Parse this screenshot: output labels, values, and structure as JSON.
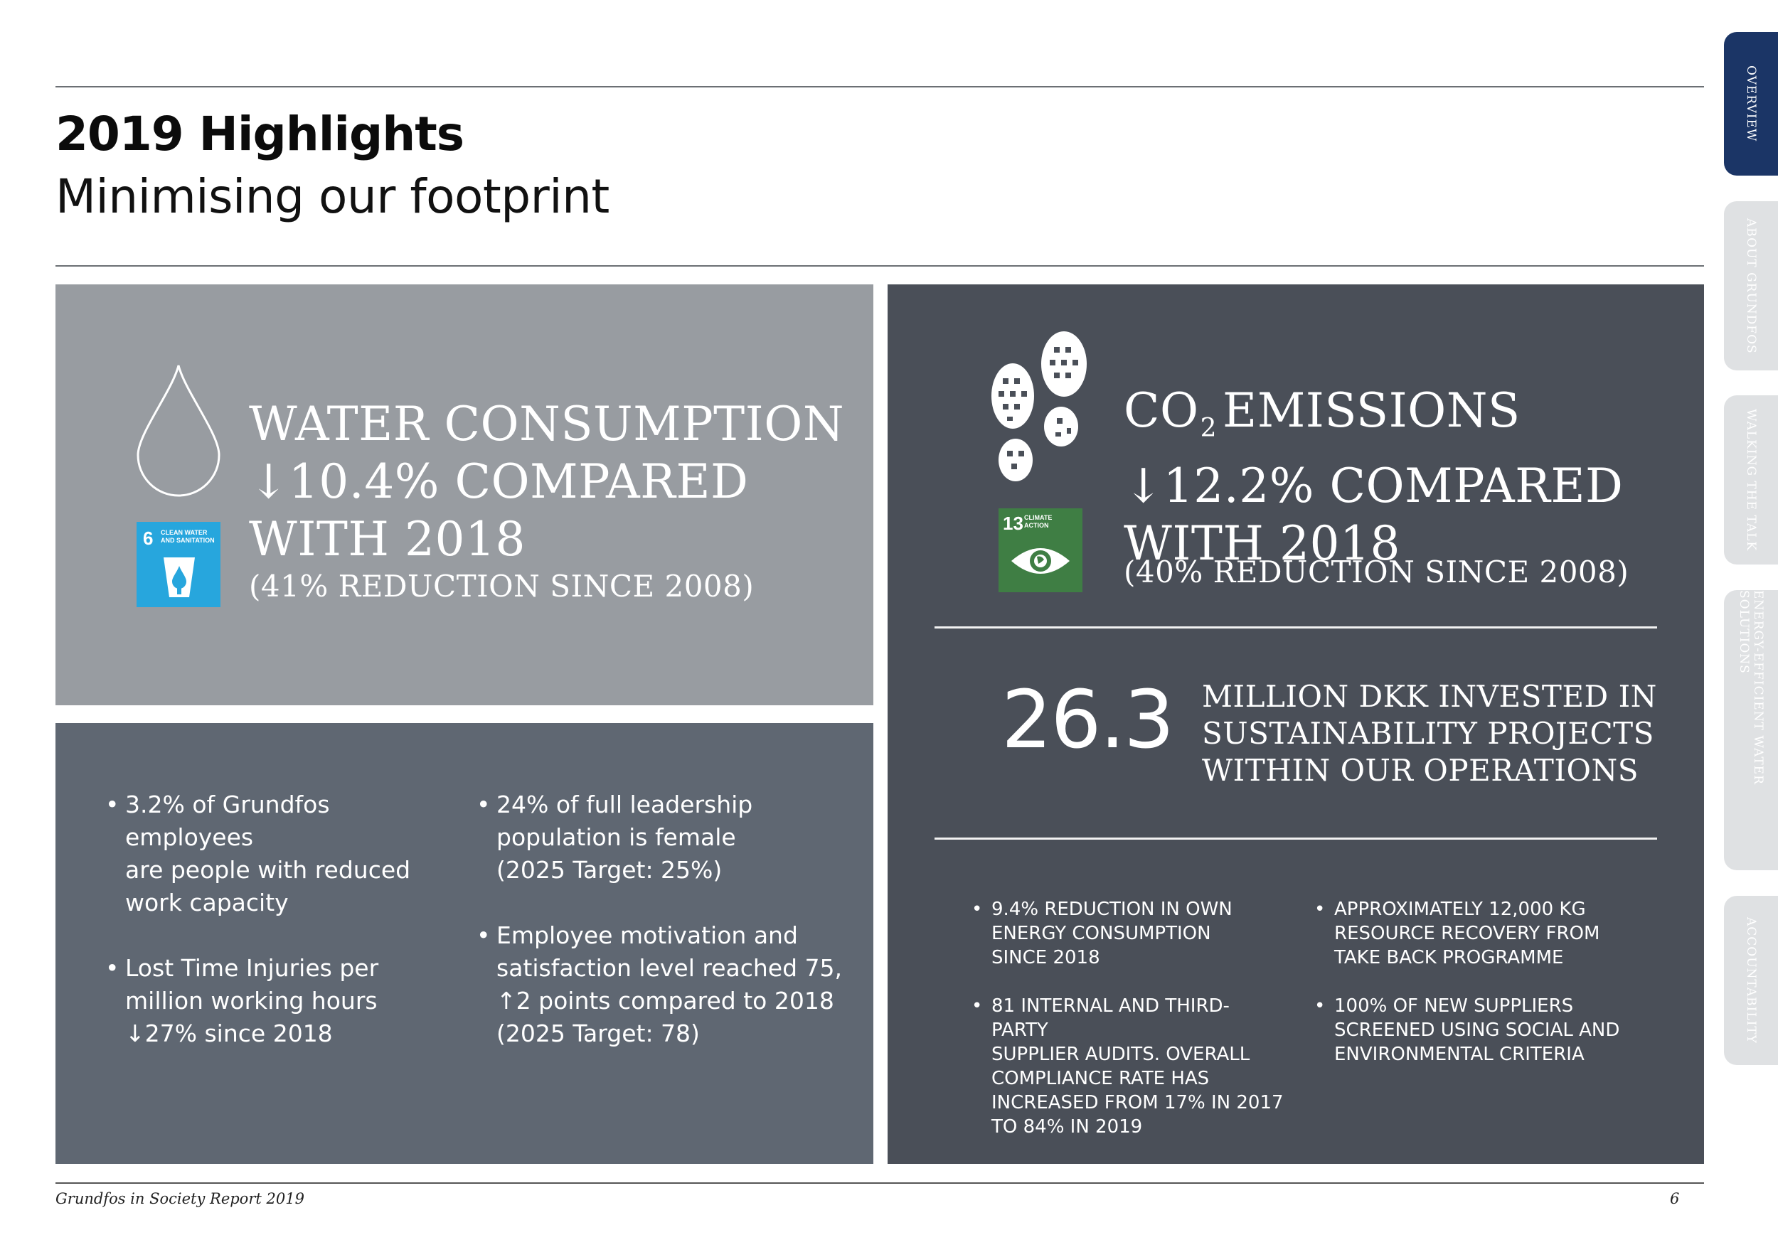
{
  "header": {
    "title": "2019 Highlights",
    "subtitle": "Minimising our footprint"
  },
  "water": {
    "headline": "WATER CONSUMPTION\n↓10.4% COMPARED\nWITH 2018",
    "note": "(41% REDUCTION SINCE 2008)",
    "sdg_number": "6",
    "sdg_label": "CLEAN WATER\nAND SANITATION",
    "sdg_color": "#27a6dd"
  },
  "people": {
    "col1": [
      "3.2% of Grundfos employees\nare people with reduced\nwork capacity",
      "Lost Time Injuries per\nmillion working hours\n↓27% since 2018"
    ],
    "col2": [
      "24% of full leadership\npopulation is female\n(2025 Target: 25%)",
      "Employee motivation and\nsatisfaction level reached 75,\n↑2 points compared to 2018\n(2025 Target: 78)"
    ]
  },
  "co2": {
    "headline_prefix": "CO",
    "headline_sub": "2",
    "headline_rest": "EMISSIONS",
    "headline_line2": "↓12.2% COMPARED",
    "headline_line3": "WITH 2018",
    "note": "(40% REDUCTION SINCE 2008)",
    "sdg_number": "13",
    "sdg_label": "CLIMATE\nACTION",
    "sdg_color": "#3f7e44",
    "invest_number": "26.3",
    "invest_text": "MILLION DKK INVESTED IN\nSUSTAINABILITY PROJECTS\nWITHIN OUR OPERATIONS",
    "col1": [
      "9.4% REDUCTION IN OWN\nENERGY CONSUMPTION\nSINCE 2018",
      "81 INTERNAL AND THIRD-PARTY\nSUPPLIER AUDITS. OVERALL\nCOMPLIANCE RATE HAS\nINCREASED FROM 17% IN 2017\nTO 84% IN 2019"
    ],
    "col2": [
      "APPROXIMATELY 12,000 KG\nRESOURCE RECOVERY FROM\nTAKE BACK PROGRAMME",
      "100% OF NEW SUPPLIERS\nSCREENED USING SOCIAL AND\nENVIRONMENTAL CRITERIA"
    ]
  },
  "footer": {
    "report_name": "Grundfos in Society Report 2019",
    "page_number": "6"
  },
  "side_tabs": [
    "OVERVIEW",
    "ABOUT GRUNDFOS",
    "WALKING THE TALK",
    "ENERGY-EFFICIENT WATER SOLUTIONS",
    "ACCOUNTABILITY"
  ],
  "colors": {
    "water_panel": "#989ca1",
    "people_panel": "#5f6772",
    "co2_panel": "#4a4f58",
    "active_tab": "#1b3566"
  }
}
